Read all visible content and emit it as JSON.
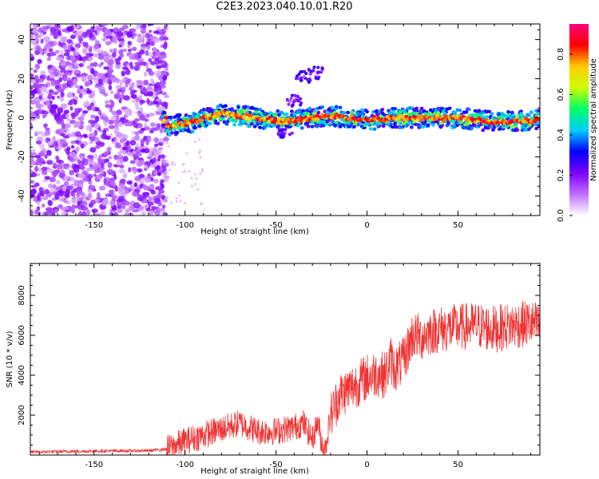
{
  "title": "C2E3.2023.040.10.01.R20",
  "chart_data": [
    {
      "type": "heatmap",
      "xlabel": "Height of straight line (km)",
      "ylabel": "Frequency (Hz)",
      "xlim": [
        -185,
        95
      ],
      "ylim": [
        -50,
        48
      ],
      "xticks": [
        -150,
        -100,
        -50,
        0,
        50
      ],
      "yticks": [
        -40,
        -20,
        0,
        20,
        40
      ],
      "colorbar": {
        "label": "Normalized spectral amplitude",
        "range": [
          0,
          0.95
        ],
        "ticks": [
          0.0,
          0.2,
          0.4,
          0.6,
          0.8
        ],
        "colormap": [
          "#ffffff",
          "#c070ff",
          "#7a00ff",
          "#0000ff",
          "#00ccff",
          "#00ff66",
          "#ccff00",
          "#ffcc00",
          "#ff0000",
          "#ff0080"
        ]
      },
      "ridge": {
        "description_points": [
          {
            "x": -110,
            "y": -4.5
          },
          {
            "x": -95,
            "y": -2
          },
          {
            "x": -80,
            "y": 2
          },
          {
            "x": -60,
            "y": 0
          },
          {
            "x": -45,
            "y": -2
          },
          {
            "x": -30,
            "y": 0
          },
          {
            "x": -20,
            "y": 1
          },
          {
            "x": 0,
            "y": -1
          },
          {
            "x": 20,
            "y": 0
          },
          {
            "x": 50,
            "y": 0
          },
          {
            "x": 70,
            "y": -2
          },
          {
            "x": 95,
            "y": -1
          }
        ]
      }
    },
    {
      "type": "line",
      "xlabel": "Height of straight line (km)",
      "ylabel": "SNR (10 * v/v)",
      "xlim": [
        -185,
        95
      ],
      "ylim": [
        0,
        9600
      ],
      "xticks": [
        -150,
        -100,
        -50,
        0,
        50
      ],
      "yticks": [
        2000,
        4000,
        6000,
        8000
      ],
      "color": "#ee3333",
      "series": [
        {
          "x": [
            -185,
            -150,
            -120,
            -110,
            -100,
            -90,
            -80,
            -70,
            -60,
            -50,
            -40,
            -35,
            -30,
            -27,
            -25,
            -23,
            -20,
            -15,
            -10,
            -5,
            0,
            5,
            10,
            13,
            15,
            20,
            22,
            25,
            30,
            35,
            40,
            50,
            60,
            70,
            80,
            90,
            95
          ],
          "values": [
            150,
            200,
            220,
            300,
            700,
            1000,
            1300,
            1600,
            1200,
            1200,
            1400,
            1600,
            800,
            1700,
            600,
            300,
            2000,
            3000,
            3300,
            3600,
            3900,
            4100,
            4000,
            4800,
            4300,
            4700,
            5200,
            6000,
            5900,
            6200,
            6300,
            6400,
            6500,
            6300,
            6500,
            6600,
            6400
          ]
        }
      ]
    }
  ]
}
